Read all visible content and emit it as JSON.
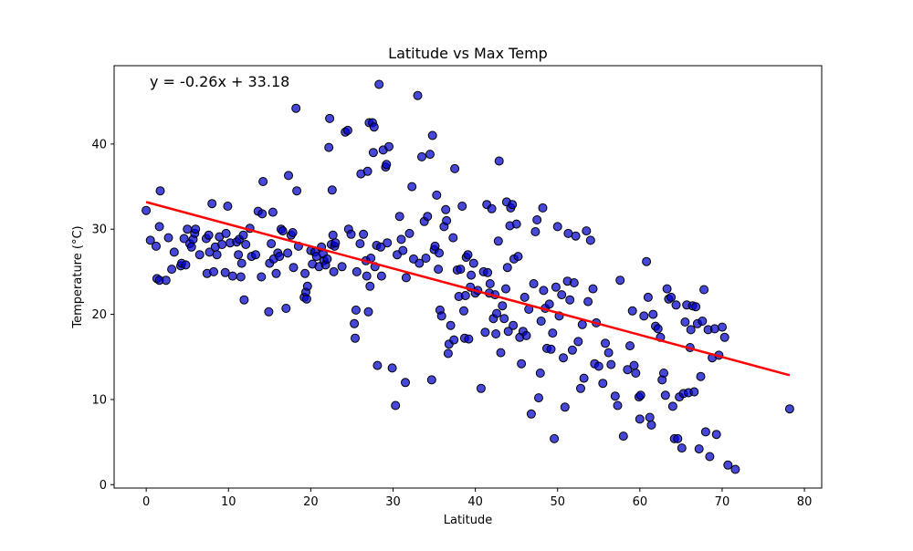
{
  "chart_data": {
    "type": "scatter",
    "title": "Latitude vs Max Temp",
    "xlabel": "Latitude",
    "ylabel": "Temperature (°C)",
    "xlim": [
      -3.9,
      82.1
    ],
    "ylim": [
      -0.4,
      49.2
    ],
    "x_ticks": [
      0,
      10,
      20,
      30,
      40,
      50,
      60,
      70,
      80
    ],
    "y_ticks": [
      0,
      10,
      20,
      30,
      40
    ],
    "grid": false,
    "point_color": "#0000cc",
    "point_edge_color": "#000000",
    "regression": {
      "equation": "y = -0.26x + 33.18",
      "slope": -0.26,
      "intercept": 33.18,
      "x_range": [
        0,
        78.2
      ],
      "color": "#ff0000"
    },
    "points": [
      [
        0,
        32.2
      ],
      [
        0.5,
        28.7
      ],
      [
        1.2,
        28
      ],
      [
        1.3,
        24.2
      ],
      [
        1.6,
        30.3
      ],
      [
        1.6,
        24
      ],
      [
        1.7,
        34.5
      ],
      [
        2.4,
        24
      ],
      [
        2.7,
        29
      ],
      [
        3.1,
        25.3
      ],
      [
        3.4,
        27.3
      ],
      [
        4.2,
        25.7
      ],
      [
        4.3,
        26
      ],
      [
        4.6,
        28.9
      ],
      [
        4.8,
        25.8
      ],
      [
        5,
        30
      ],
      [
        5.3,
        28.3
      ],
      [
        5.5,
        27.9
      ],
      [
        5.7,
        28.8
      ],
      [
        5.9,
        29.5
      ],
      [
        6,
        30
      ],
      [
        6.5,
        27
      ],
      [
        7.3,
        28.9
      ],
      [
        7.4,
        24.8
      ],
      [
        7.6,
        29.3
      ],
      [
        7.7,
        27.3
      ],
      [
        8,
        33
      ],
      [
        8.2,
        25
      ],
      [
        8.4,
        27.9
      ],
      [
        8.6,
        27
      ],
      [
        8.9,
        29.1
      ],
      [
        9.2,
        28.2
      ],
      [
        9.6,
        24.9
      ],
      [
        9.7,
        29.5
      ],
      [
        9.9,
        32.7
      ],
      [
        10.2,
        28.4
      ],
      [
        10.5,
        24.5
      ],
      [
        11,
        28.5
      ],
      [
        11.2,
        27
      ],
      [
        11.3,
        28.8
      ],
      [
        11.5,
        24.4
      ],
      [
        11.6,
        26
      ],
      [
        11.8,
        29.3
      ],
      [
        11.9,
        21.7
      ],
      [
        12.1,
        28.2
      ],
      [
        12.6,
        30.1
      ],
      [
        12.8,
        26.8
      ],
      [
        13.3,
        27
      ],
      [
        13.6,
        32.1
      ],
      [
        14,
        24.4
      ],
      [
        14.1,
        31.8
      ],
      [
        14.2,
        35.6
      ],
      [
        14.9,
        20.3
      ],
      [
        15,
        26
      ],
      [
        15.2,
        28.3
      ],
      [
        15.4,
        32
      ],
      [
        15.5,
        26.5
      ],
      [
        15.8,
        24.8
      ],
      [
        16,
        27.2
      ],
      [
        16.2,
        26.8
      ],
      [
        16.4,
        30
      ],
      [
        16.6,
        29.8
      ],
      [
        17,
        20.7
      ],
      [
        17.2,
        27.2
      ],
      [
        17.3,
        36.3
      ],
      [
        17.6,
        29.3
      ],
      [
        17.8,
        29.6
      ],
      [
        17.9,
        25.5
      ],
      [
        18.2,
        44.2
      ],
      [
        18.3,
        34.5
      ],
      [
        18.5,
        28
      ],
      [
        19.2,
        22
      ],
      [
        19.3,
        24.8
      ],
      [
        19.4,
        22.6
      ],
      [
        19.5,
        21.8
      ],
      [
        19.6,
        23.3
      ],
      [
        20,
        27.5
      ],
      [
        20.2,
        25.9
      ],
      [
        20.5,
        27.3
      ],
      [
        20.7,
        26.8
      ],
      [
        21,
        25.6
      ],
      [
        21.3,
        27.9
      ],
      [
        21.5,
        27.1
      ],
      [
        21.6,
        26.3
      ],
      [
        21.8,
        25.8
      ],
      [
        22,
        26.5
      ],
      [
        22.2,
        39.6
      ],
      [
        22.3,
        43
      ],
      [
        22.5,
        28.2
      ],
      [
        22.6,
        34.6
      ],
      [
        22.7,
        29.3
      ],
      [
        22.8,
        25
      ],
      [
        22.9,
        28
      ],
      [
        23,
        28.4
      ],
      [
        23.8,
        25.6
      ],
      [
        24.2,
        41.4
      ],
      [
        24.5,
        41.6
      ],
      [
        24.6,
        30
      ],
      [
        24.9,
        29.4
      ],
      [
        25.3,
        18.9
      ],
      [
        25.5,
        20.5
      ],
      [
        25.4,
        17.2
      ],
      [
        25.6,
        25
      ],
      [
        26,
        28.3
      ],
      [
        26.1,
        36.5
      ],
      [
        26.4,
        29.4
      ],
      [
        26.7,
        26.3
      ],
      [
        26.8,
        24.5
      ],
      [
        26.9,
        36.8
      ],
      [
        27,
        20.3
      ],
      [
        27.1,
        42.5
      ],
      [
        27.2,
        23.3
      ],
      [
        27.3,
        26.6
      ],
      [
        27.5,
        42.5
      ],
      [
        27.6,
        39
      ],
      [
        27.7,
        42
      ],
      [
        27.8,
        25.6
      ],
      [
        28,
        28.1
      ],
      [
        28.1,
        14
      ],
      [
        28.3,
        47
      ],
      [
        28.5,
        27.9
      ],
      [
        28.6,
        24.5
      ],
      [
        28.8,
        39.3
      ],
      [
        29.1,
        37.3
      ],
      [
        29.2,
        37.6
      ],
      [
        29.3,
        28.4
      ],
      [
        29.5,
        39.7
      ],
      [
        29.9,
        13.7
      ],
      [
        30.3,
        9.3
      ],
      [
        30.5,
        27
      ],
      [
        30.8,
        31.5
      ],
      [
        31,
        28.8
      ],
      [
        31.2,
        27.5
      ],
      [
        31.5,
        12
      ],
      [
        31.6,
        24.3
      ],
      [
        32,
        29.5
      ],
      [
        32.3,
        35
      ],
      [
        32.5,
        26.5
      ],
      [
        33,
        45.7
      ],
      [
        33.2,
        26
      ],
      [
        33.5,
        38.5
      ],
      [
        33.8,
        30.9
      ],
      [
        34,
        26.6
      ],
      [
        34.2,
        31.5
      ],
      [
        34.5,
        38.8
      ],
      [
        34.7,
        12.3
      ],
      [
        34.8,
        41
      ],
      [
        35,
        27.6
      ],
      [
        35.1,
        28
      ],
      [
        35.3,
        34
      ],
      [
        35.5,
        25.3
      ],
      [
        35.6,
        27.2
      ],
      [
        35.7,
        20.5
      ],
      [
        35.9,
        19.8
      ],
      [
        36.2,
        30.3
      ],
      [
        36.4,
        32.3
      ],
      [
        36.5,
        31
      ],
      [
        36.7,
        15.4
      ],
      [
        36.8,
        16.5
      ],
      [
        37,
        18.7
      ],
      [
        37.3,
        29
      ],
      [
        37.4,
        17
      ],
      [
        37.5,
        37.1
      ],
      [
        37.8,
        25.2
      ],
      [
        38,
        22.1
      ],
      [
        38.2,
        25.3
      ],
      [
        38.4,
        32.7
      ],
      [
        38.6,
        20.4
      ],
      [
        38.7,
        17.2
      ],
      [
        38.8,
        22.2
      ],
      [
        38.9,
        26.7
      ],
      [
        39.1,
        27
      ],
      [
        39.2,
        17.1
      ],
      [
        39.4,
        23.2
      ],
      [
        39.5,
        24.6
      ],
      [
        39.8,
        26
      ],
      [
        40,
        22.5
      ],
      [
        40.3,
        22.8
      ],
      [
        40.7,
        11.3
      ],
      [
        41,
        25
      ],
      [
        41.2,
        17.9
      ],
      [
        41.4,
        32.9
      ],
      [
        41.5,
        24.9
      ],
      [
        41.7,
        22.5
      ],
      [
        41.8,
        23.6
      ],
      [
        42,
        32.4
      ],
      [
        42.2,
        19.5
      ],
      [
        42.4,
        22.3
      ],
      [
        42.5,
        17.7
      ],
      [
        42.6,
        20.1
      ],
      [
        42.8,
        28.6
      ],
      [
        42.9,
        38
      ],
      [
        43.1,
        15.5
      ],
      [
        43.3,
        21
      ],
      [
        43.5,
        19.5
      ],
      [
        43.7,
        23
      ],
      [
        43.8,
        33.2
      ],
      [
        43.9,
        25.5
      ],
      [
        44,
        18
      ],
      [
        44.2,
        30.4
      ],
      [
        44.3,
        32.5
      ],
      [
        44.5,
        32.9
      ],
      [
        44.6,
        18.7
      ],
      [
        44.7,
        26.5
      ],
      [
        45,
        30.6
      ],
      [
        45.2,
        26.8
      ],
      [
        45.4,
        17.3
      ],
      [
        45.6,
        14.2
      ],
      [
        45.8,
        18
      ],
      [
        46,
        22
      ],
      [
        46.2,
        17.5
      ],
      [
        46.5,
        20.6
      ],
      [
        46.8,
        8.3
      ],
      [
        47.1,
        23.6
      ],
      [
        47.3,
        29.7
      ],
      [
        47.5,
        31.1
      ],
      [
        47.7,
        10.2
      ],
      [
        47.9,
        13.1
      ],
      [
        48,
        19.2
      ],
      [
        48.2,
        32.5
      ],
      [
        48.3,
        22.8
      ],
      [
        48.5,
        20.7
      ],
      [
        48.7,
        16
      ],
      [
        49,
        21.2
      ],
      [
        49.2,
        15.9
      ],
      [
        49.4,
        17.8
      ],
      [
        49.6,
        5.4
      ],
      [
        49.8,
        23.2
      ],
      [
        50,
        30.3
      ],
      [
        50.2,
        19.8
      ],
      [
        50.5,
        22.3
      ],
      [
        50.7,
        14.9
      ],
      [
        50.9,
        9.1
      ],
      [
        51.2,
        23.9
      ],
      [
        51.3,
        29.5
      ],
      [
        51.5,
        21.7
      ],
      [
        51.8,
        15.8
      ],
      [
        52,
        23.7
      ],
      [
        52.2,
        29.2
      ],
      [
        52.5,
        16.8
      ],
      [
        52.8,
        11.3
      ],
      [
        53,
        18.8
      ],
      [
        53.2,
        12.5
      ],
      [
        53.5,
        29.8
      ],
      [
        53.7,
        21.5
      ],
      [
        54,
        28.7
      ],
      [
        54.3,
        23
      ],
      [
        54.5,
        14.2
      ],
      [
        54.7,
        19
      ],
      [
        55,
        13.9
      ],
      [
        55.5,
        11.9
      ],
      [
        55.8,
        16.6
      ],
      [
        56.2,
        15.5
      ],
      [
        56.5,
        14.1
      ],
      [
        57,
        10.4
      ],
      [
        57.3,
        9.3
      ],
      [
        57.6,
        24
      ],
      [
        58,
        5.7
      ],
      [
        58.5,
        13.5
      ],
      [
        58.8,
        16.3
      ],
      [
        59.1,
        20.4
      ],
      [
        59.3,
        14
      ],
      [
        59.5,
        13.1
      ],
      [
        59.9,
        10.3
      ],
      [
        60,
        7.7
      ],
      [
        60.1,
        10.5
      ],
      [
        60.5,
        19.8
      ],
      [
        60.8,
        26.2
      ],
      [
        61,
        22
      ],
      [
        61.2,
        7.9
      ],
      [
        61.4,
        7
      ],
      [
        61.6,
        20
      ],
      [
        61.9,
        18.6
      ],
      [
        62.2,
        18.3
      ],
      [
        62.5,
        17.3
      ],
      [
        62.7,
        12.3
      ],
      [
        62.9,
        13.1
      ],
      [
        63.1,
        10.5
      ],
      [
        63.3,
        23
      ],
      [
        63.5,
        21.8
      ],
      [
        63.8,
        22
      ],
      [
        64,
        9.2
      ],
      [
        64.2,
        5.4
      ],
      [
        64.4,
        21.1
      ],
      [
        64.6,
        5.4
      ],
      [
        64.8,
        10.3
      ],
      [
        65.1,
        4.3
      ],
      [
        65.3,
        10.7
      ],
      [
        65.5,
        19.1
      ],
      [
        65.7,
        21.1
      ],
      [
        65.9,
        10.8
      ],
      [
        66.1,
        16.1
      ],
      [
        66.2,
        18.2
      ],
      [
        66.4,
        21
      ],
      [
        66.6,
        10.9
      ],
      [
        66.8,
        20.9
      ],
      [
        67,
        18.9
      ],
      [
        67.2,
        4.2
      ],
      [
        67.4,
        12.7
      ],
      [
        67.6,
        19.2
      ],
      [
        67.8,
        22.9
      ],
      [
        68,
        6.2
      ],
      [
        68.3,
        18.2
      ],
      [
        68.5,
        3.3
      ],
      [
        68.8,
        14.9
      ],
      [
        69.1,
        18.3
      ],
      [
        69.3,
        5.9
      ],
      [
        69.6,
        15.2
      ],
      [
        70,
        18.5
      ],
      [
        70.3,
        17.3
      ],
      [
        70.7,
        2.3
      ],
      [
        71.6,
        1.8
      ],
      [
        78.2,
        8.9
      ]
    ]
  }
}
